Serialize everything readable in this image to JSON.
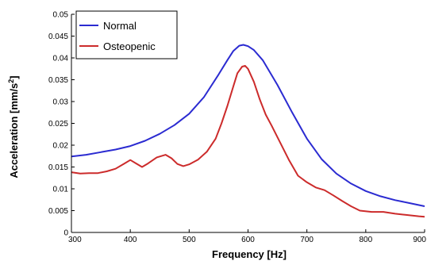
{
  "chart_data": {
    "type": "line",
    "title": "",
    "xlabel": "Frequency [Hz]",
    "ylabel_main": "Acceleration [mm/s",
    "ylabel_sup": "2",
    "ylabel_end": "]",
    "xlim": [
      300,
      900
    ],
    "ylim": [
      0,
      0.05
    ],
    "x_ticks": [
      300,
      400,
      500,
      600,
      700,
      800,
      900
    ],
    "x_tick_labels": [
      "300",
      "400",
      "500",
      "600",
      "700",
      "800",
      "900"
    ],
    "y_ticks": [
      0,
      0.005,
      0.01,
      0.015,
      0.02,
      0.025,
      0.03,
      0.035,
      0.04,
      0.045,
      0.05
    ],
    "y_tick_labels": [
      "0",
      "0.005",
      "0.01",
      "0.015",
      "0.02",
      "0.025",
      "0.03",
      "0.035",
      "0.04",
      "0.045",
      "0.05"
    ],
    "grid": false,
    "legend_position": "top-left",
    "series": [
      {
        "name": "Normal",
        "color": "#2b2bd1",
        "x": [
          300,
          325,
          350,
          375,
          400,
          425,
          450,
          475,
          500,
          525,
          550,
          565,
          575,
          585,
          592,
          600,
          610,
          625,
          650,
          675,
          700,
          725,
          750,
          775,
          800,
          825,
          850,
          875,
          900
        ],
        "y": [
          0.0174,
          0.0178,
          0.0184,
          0.019,
          0.0198,
          0.021,
          0.0226,
          0.0246,
          0.0272,
          0.031,
          0.0362,
          0.0395,
          0.0416,
          0.0428,
          0.043,
          0.0427,
          0.0418,
          0.0395,
          0.0338,
          0.0275,
          0.0215,
          0.0168,
          0.0135,
          0.0112,
          0.0095,
          0.0083,
          0.0074,
          0.0067,
          0.006
        ]
      },
      {
        "name": "Osteopenic",
        "color": "#cc2b2b",
        "x": [
          300,
          315,
          330,
          345,
          360,
          375,
          390,
          400,
          410,
          420,
          430,
          445,
          460,
          470,
          480,
          490,
          500,
          515,
          530,
          545,
          555,
          565,
          575,
          582,
          590,
          595,
          600,
          610,
          620,
          630,
          640,
          655,
          670,
          685,
          700,
          715,
          730,
          745,
          760,
          775,
          790,
          810,
          830,
          850,
          870,
          890,
          900
        ],
        "y": [
          0.0138,
          0.0135,
          0.0136,
          0.0136,
          0.014,
          0.0146,
          0.0158,
          0.0166,
          0.0158,
          0.015,
          0.0158,
          0.0172,
          0.0178,
          0.017,
          0.0157,
          0.0152,
          0.0156,
          0.0167,
          0.0185,
          0.0215,
          0.025,
          0.029,
          0.0335,
          0.0365,
          0.038,
          0.0382,
          0.0375,
          0.0345,
          0.0305,
          0.027,
          0.0245,
          0.0205,
          0.0165,
          0.013,
          0.0115,
          0.0103,
          0.0097,
          0.0085,
          0.0072,
          0.006,
          0.005,
          0.0047,
          0.0047,
          0.0043,
          0.004,
          0.0037,
          0.0036
        ]
      }
    ]
  }
}
